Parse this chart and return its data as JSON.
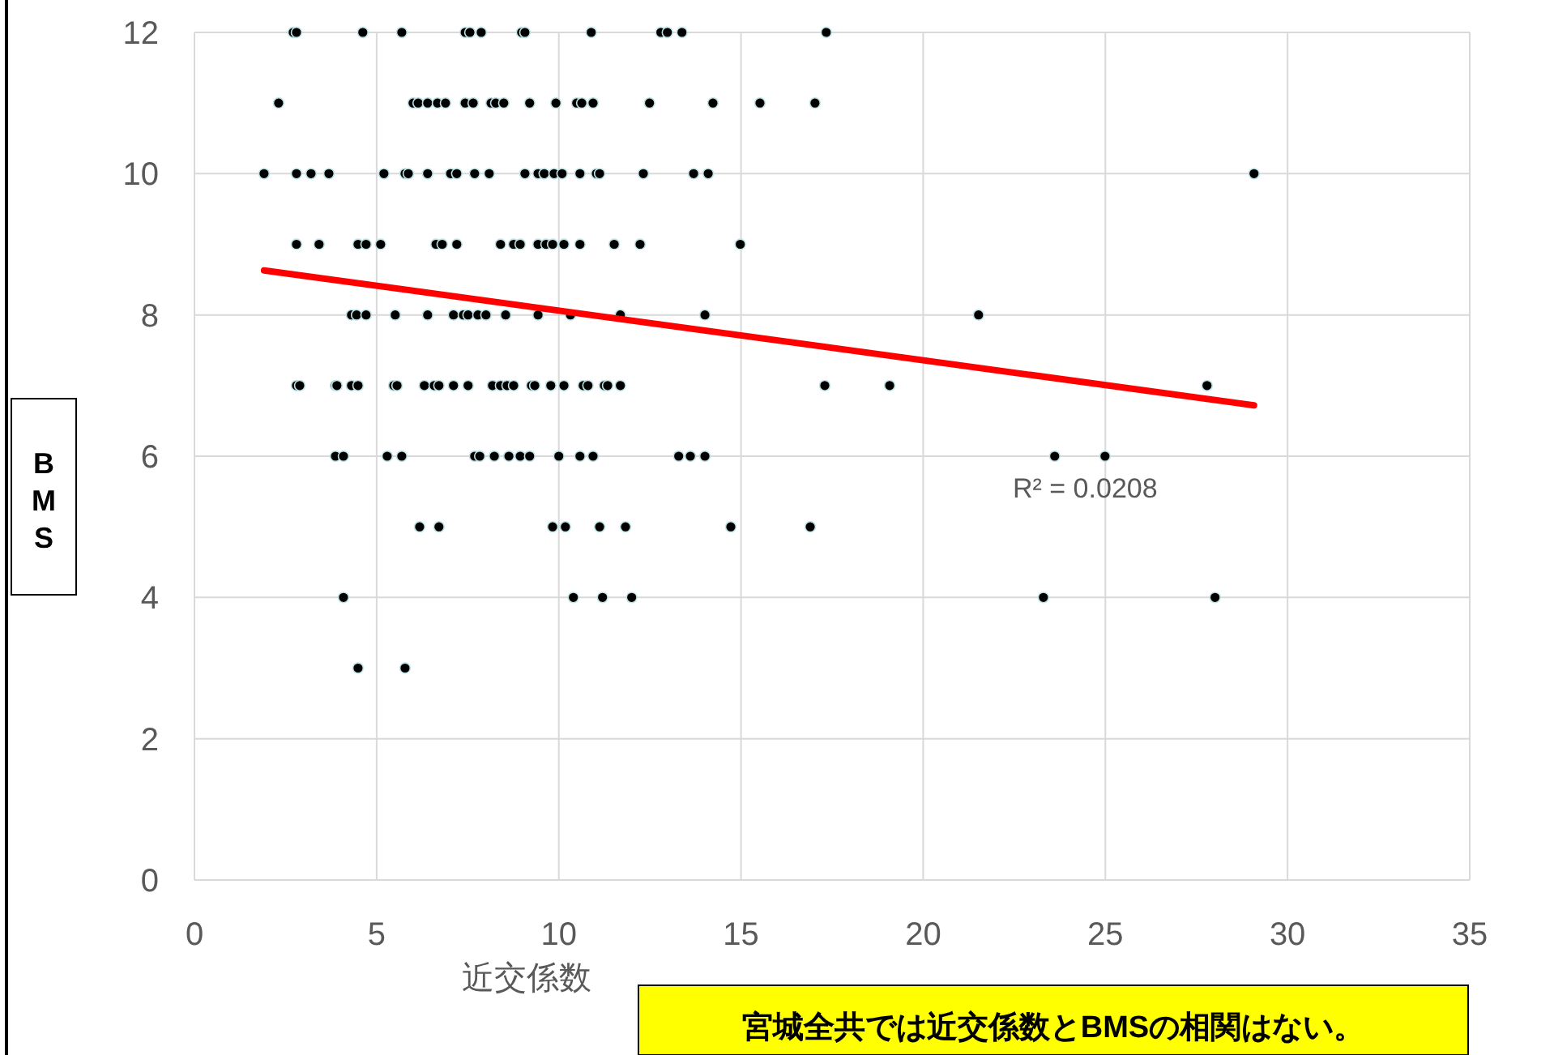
{
  "chart_data": {
    "type": "scatter",
    "xlabel": "近交係数",
    "ylabel": "BMS",
    "xlim": [
      0,
      35
    ],
    "xticks": [
      0,
      5,
      10,
      15,
      20,
      25,
      30,
      35
    ],
    "ylim": [
      0,
      12
    ],
    "yticks": [
      0,
      2,
      4,
      6,
      8,
      10,
      12
    ],
    "grid": true,
    "annotations": [
      "R² = 0.0208",
      "宮城全共では近交係数とBMSの相関はない。"
    ],
    "series": [
      {
        "marker": "circle",
        "color": "#000000",
        "x": [
          2.71,
          2.8,
          4.62,
          5.69,
          7.43,
          7.56,
          7.87,
          8.98,
          9.07,
          10.89,
          12.8,
          12.98,
          13.38,
          17.34,
          2.31,
          6.0,
          6.14,
          6.4,
          6.67,
          6.89,
          7.43,
          7.65,
          8.14,
          8.27,
          8.49,
          9.2,
          9.92,
          10.49,
          10.63,
          10.94,
          12.49,
          14.23,
          15.52,
          17.03,
          1.91,
          2.8,
          3.2,
          3.69,
          5.2,
          5.78,
          5.87,
          6.4,
          7.03,
          7.2,
          7.69,
          8.09,
          9.07,
          9.43,
          9.6,
          9.87,
          10.09,
          10.58,
          11.03,
          11.12,
          12.32,
          13.7,
          14.1,
          29.08,
          2.8,
          3.42,
          4.49,
          4.71,
          5.11,
          6.63,
          6.8,
          7.2,
          8.4,
          8.76,
          8.94,
          9.43,
          9.65,
          9.83,
          10.14,
          10.58,
          11.52,
          12.23,
          14.98,
          4.31,
          4.45,
          4.71,
          5.51,
          6.4,
          7.11,
          7.38,
          7.51,
          7.78,
          8.0,
          8.54,
          9.43,
          10.32,
          11.69,
          14.01,
          21.52,
          2.8,
          2.89,
          3.87,
          3.91,
          4.31,
          4.49,
          5.47,
          5.56,
          6.31,
          6.58,
          6.71,
          7.11,
          7.51,
          8.18,
          8.4,
          8.58,
          8.76,
          9.25,
          9.34,
          9.78,
          10.14,
          10.67,
          10.8,
          11.25,
          11.34,
          11.69,
          17.3,
          19.08,
          27.79,
          3.87,
          4.09,
          5.29,
          5.69,
          7.69,
          7.83,
          8.23,
          8.63,
          8.94,
          9.2,
          10.0,
          10.58,
          10.94,
          13.29,
          13.61,
          14.01,
          23.61,
          24.99,
          6.18,
          6.71,
          9.83,
          10.18,
          11.12,
          11.83,
          14.72,
          16.9,
          4.09,
          10.4,
          11.2,
          12.0,
          23.3,
          28.01,
          4.49,
          5.78
        ],
        "values": [
          12,
          12,
          12,
          12,
          12,
          12,
          12,
          12,
          12,
          12,
          12,
          12,
          12,
          12,
          11,
          11,
          11,
          11,
          11,
          11,
          11,
          11,
          11,
          11,
          11,
          11,
          11,
          11,
          11,
          11,
          11,
          11,
          11,
          11,
          10,
          10,
          10,
          10,
          10,
          10,
          10,
          10,
          10,
          10,
          10,
          10,
          10,
          10,
          10,
          10,
          10,
          10,
          10,
          10,
          10,
          10,
          10,
          10,
          9,
          9,
          9,
          9,
          9,
          9,
          9,
          9,
          9,
          9,
          9,
          9,
          9,
          9,
          9,
          9,
          9,
          9,
          9,
          8,
          8,
          8,
          8,
          8,
          8,
          8,
          8,
          8,
          8,
          8,
          8,
          8,
          8,
          8,
          8,
          7,
          7,
          7,
          7,
          7,
          7,
          7,
          7,
          7,
          7,
          7,
          7,
          7,
          7,
          7,
          7,
          7,
          7,
          7,
          7,
          7,
          7,
          7,
          7,
          7,
          7,
          7,
          7,
          7,
          6,
          6,
          6,
          6,
          6,
          6,
          6,
          6,
          6,
          6,
          6,
          6,
          6,
          6,
          6,
          6,
          6,
          6,
          5,
          5,
          5,
          5,
          5,
          5,
          5,
          5,
          4,
          4,
          4,
          4,
          4,
          4,
          3,
          3
        ]
      },
      {
        "type": "line",
        "marker": "none",
        "color": "#ff0000",
        "x": [
          1.91,
          29.08
        ],
        "values": [
          8.63,
          6.72
        ]
      }
    ]
  }
}
